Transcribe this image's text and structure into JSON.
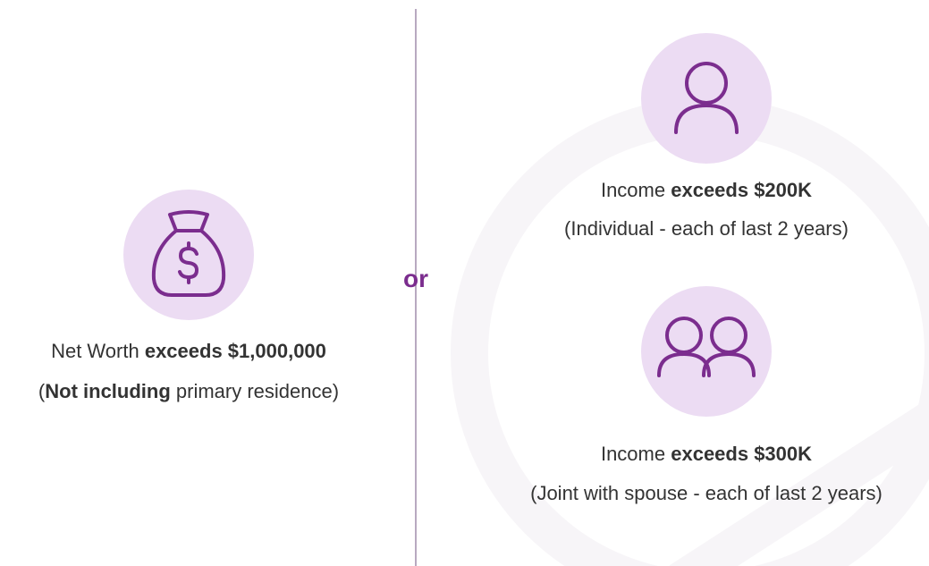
{
  "separator": "or",
  "net_worth": {
    "line1": {
      "text": "Net Worth",
      "bold": "exceeds $1,000,000"
    },
    "line2": {
      "open": "(",
      "bold": "Not including",
      "text": "primary residence)"
    }
  },
  "individual": {
    "line1": {
      "text": "Income",
      "bold": "exceeds $200K"
    },
    "line2": "(Individual - each of last 2 years)"
  },
  "joint": {
    "line1": {
      "text": "Income",
      "bold": "exceeds $300K"
    },
    "line2": "(Joint with spouse - each of last 2 years)"
  }
}
